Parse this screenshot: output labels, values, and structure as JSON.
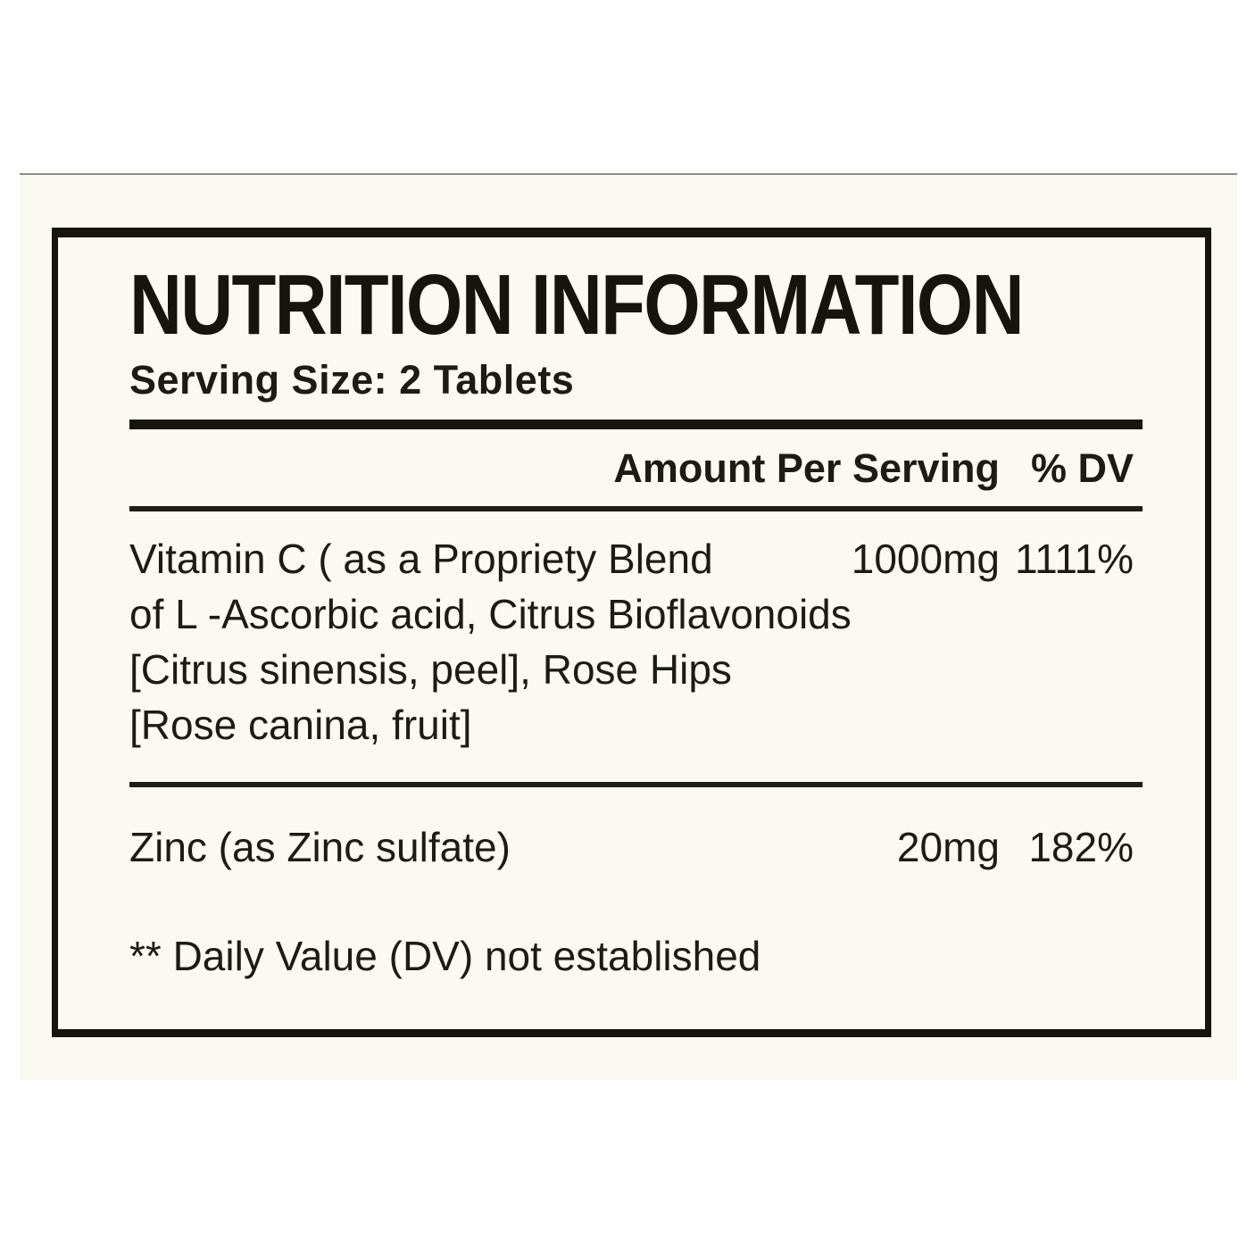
{
  "page": {
    "background_color": "#ffffff",
    "panel_color": "#faf9f1",
    "divider_color": "#8d8d8b",
    "text_color": "#1e1b15"
  },
  "label": {
    "title": "NUTRITION INFORMATION",
    "serving_size": "Serving Size: 2 Tablets",
    "columns": {
      "amount": "Amount Per Serving",
      "dv": "% DV"
    },
    "rows": [
      {
        "name_lines": [
          "Vitamin C ( as a Propriety Blend",
          "of L -Ascorbic acid, Citrus Bioflavonoids",
          "[Citrus sinensis, peel], Rose Hips",
          "[Rose canina, fruit]"
        ],
        "amount": "1000mg",
        "dv": "1111%"
      },
      {
        "name_lines": [
          "Zinc (as Zinc sulfate)"
        ],
        "amount": "20mg",
        "dv": "182%"
      }
    ],
    "footnote": "** Daily Value (DV) not established"
  }
}
